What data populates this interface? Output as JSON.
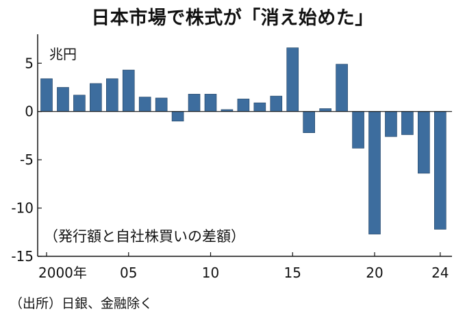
{
  "chart_data": {
    "type": "bar",
    "title": "日本市場で株式が「消え始めた」",
    "ylabel": "兆円",
    "annotation": "（発行額と自社株買いの差額）",
    "source": "（出所）日銀、金融除く",
    "ylim": [
      -15,
      8
    ],
    "yticks": [
      {
        "value": 5,
        "label": "5"
      },
      {
        "value": 0,
        "label": "0"
      },
      {
        "value": -5,
        "label": "-5"
      },
      {
        "value": -10,
        "label": "-10"
      },
      {
        "value": -15,
        "label": "-15"
      }
    ],
    "categories": [
      "2000",
      "2001",
      "2002",
      "2003",
      "2004",
      "2005",
      "2006",
      "2007",
      "2008",
      "2009",
      "2010",
      "2011",
      "2012",
      "2013",
      "2014",
      "2015",
      "2016",
      "2017",
      "2018",
      "2019",
      "2020",
      "2021",
      "2022",
      "2023",
      "2024"
    ],
    "xtick_labels": [
      {
        "index": 0,
        "label": "2000年"
      },
      {
        "index": 5,
        "label": "05"
      },
      {
        "index": 10,
        "label": "10"
      },
      {
        "index": 15,
        "label": "15"
      },
      {
        "index": 20,
        "label": "20"
      },
      {
        "index": 24,
        "label": "24"
      }
    ],
    "values": [
      3.4,
      2.5,
      1.7,
      2.9,
      3.4,
      4.3,
      1.5,
      1.4,
      -1.0,
      1.8,
      1.8,
      0.2,
      1.3,
      0.9,
      1.6,
      6.6,
      -2.2,
      0.3,
      4.9,
      -3.8,
      -12.7,
      -2.6,
      -2.4,
      -6.4,
      -12.2
    ],
    "bar_color": "#3d6d9e",
    "grid": false,
    "legend": "none"
  }
}
